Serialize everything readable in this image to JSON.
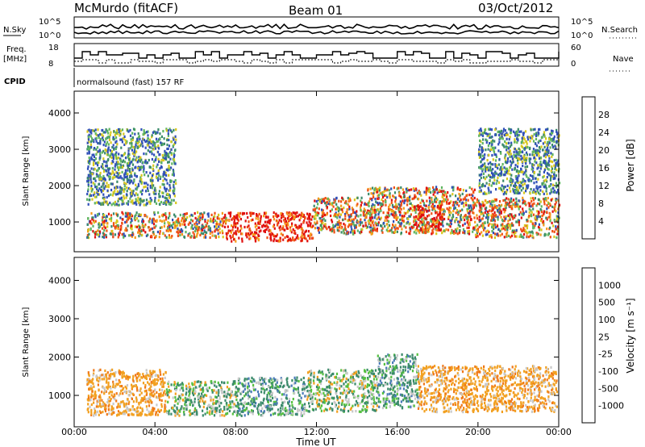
{
  "header": {
    "station": "McMurdo (fitACF)",
    "beam": "Beam 01",
    "date": "03/Oct/2012"
  },
  "summary_panels": {
    "nsky_label": "N.Sky",
    "nsearch_label": "N.Search",
    "freq_label_1": "Freq.",
    "freq_label_2": "[MHz]",
    "nave_label": "Nave",
    "cpid_label": "CPID",
    "cpid_text": "normalsound (fast) 157 RF",
    "noise_ticks": [
      "10^5",
      "10^0"
    ],
    "freq_ticks": [
      "18",
      "8"
    ],
    "nave_ticks": [
      "60",
      "0"
    ]
  },
  "chart_data": [
    {
      "type": "heatmap",
      "name": "power",
      "xlabel": "Time UT",
      "ylabel": "Slant Range [km]",
      "x_tick_labels": [
        "00:00",
        "04:00",
        "08:00",
        "12:00",
        "16:00",
        "20:00",
        "00:00"
      ],
      "x_ticks_hours": [
        0,
        4,
        8,
        12,
        16,
        20,
        24
      ],
      "xlim_hours": [
        0,
        24
      ],
      "y_ticks": [
        1000,
        2000,
        3000,
        4000
      ],
      "ylim": [
        180,
        4600
      ],
      "colorbar": {
        "label": "Power [dB]",
        "ticks": [
          "4",
          "8",
          "12",
          "16",
          "20",
          "24",
          "28"
        ],
        "colors": [
          "#1010f0",
          "#3050b8",
          "#3a8a6a",
          "#5fb55f",
          "#d8c81e",
          "#f59a1a",
          "#f05014",
          "#e01010"
        ]
      },
      "bands": [
        {
          "t": [
            0.6,
            7.5
          ],
          "r": [
            600,
            1300
          ],
          "level": "mid"
        },
        {
          "t": [
            7.5,
            11.8
          ],
          "r": [
            500,
            1300
          ],
          "level": "high"
        },
        {
          "t": [
            11.8,
            14.5
          ],
          "r": [
            700,
            1700
          ],
          "level": "mid"
        },
        {
          "t": [
            14.5,
            19.8
          ],
          "r": [
            700,
            2000
          ],
          "level": "mid"
        },
        {
          "t": [
            16.8,
            18.2
          ],
          "r": [
            800,
            1500
          ],
          "level": "high"
        },
        {
          "t": [
            19.8,
            24.0
          ],
          "r": [
            600,
            1700
          ],
          "level": "mid"
        },
        {
          "t": [
            0.6,
            5.0
          ],
          "r": [
            1500,
            3600
          ],
          "level": "low"
        },
        {
          "t": [
            20.0,
            24.0
          ],
          "r": [
            1800,
            3600
          ],
          "level": "low"
        }
      ]
    },
    {
      "type": "heatmap",
      "name": "velocity",
      "xlabel": "Time UT",
      "ylabel": "Slant Range [km]",
      "x_tick_labels": [
        "00:00",
        "04:00",
        "08:00",
        "12:00",
        "16:00",
        "20:00",
        "00:00"
      ],
      "x_ticks_hours": [
        0,
        4,
        8,
        12,
        16,
        20,
        24
      ],
      "xlim_hours": [
        0,
        24
      ],
      "y_ticks": [
        1000,
        2000,
        3000,
        4000
      ],
      "ylim": [
        180,
        4600
      ],
      "colorbar": {
        "label": "Velocity [m s⁻¹]",
        "ticks": [
          "1000",
          "500",
          "100",
          "25",
          "-25",
          "-100",
          "-500",
          "-1000"
        ],
        "colors": [
          "#2040c0",
          "#4a7ab8",
          "#3a8a6a",
          "#55c040",
          "#c8c8c8",
          "#f2a020",
          "#f07818",
          "#e83010",
          "#e00000"
        ]
      },
      "bands": [
        {
          "t": [
            0.6,
            4.5
          ],
          "r": [
            500,
            1700
          ],
          "level": "neg"
        },
        {
          "t": [
            4.5,
            8.0
          ],
          "r": [
            500,
            1400
          ],
          "level": "mix"
        },
        {
          "t": [
            8.0,
            11.5
          ],
          "r": [
            500,
            1500
          ],
          "level": "pos"
        },
        {
          "t": [
            11.5,
            15.0
          ],
          "r": [
            600,
            1700
          ],
          "level": "mix"
        },
        {
          "t": [
            15.0,
            17.0
          ],
          "r": [
            700,
            2100
          ],
          "level": "pos"
        },
        {
          "t": [
            17.0,
            23.9
          ],
          "r": [
            600,
            1800
          ],
          "level": "neg"
        }
      ]
    }
  ],
  "xlabel": "Time UT"
}
